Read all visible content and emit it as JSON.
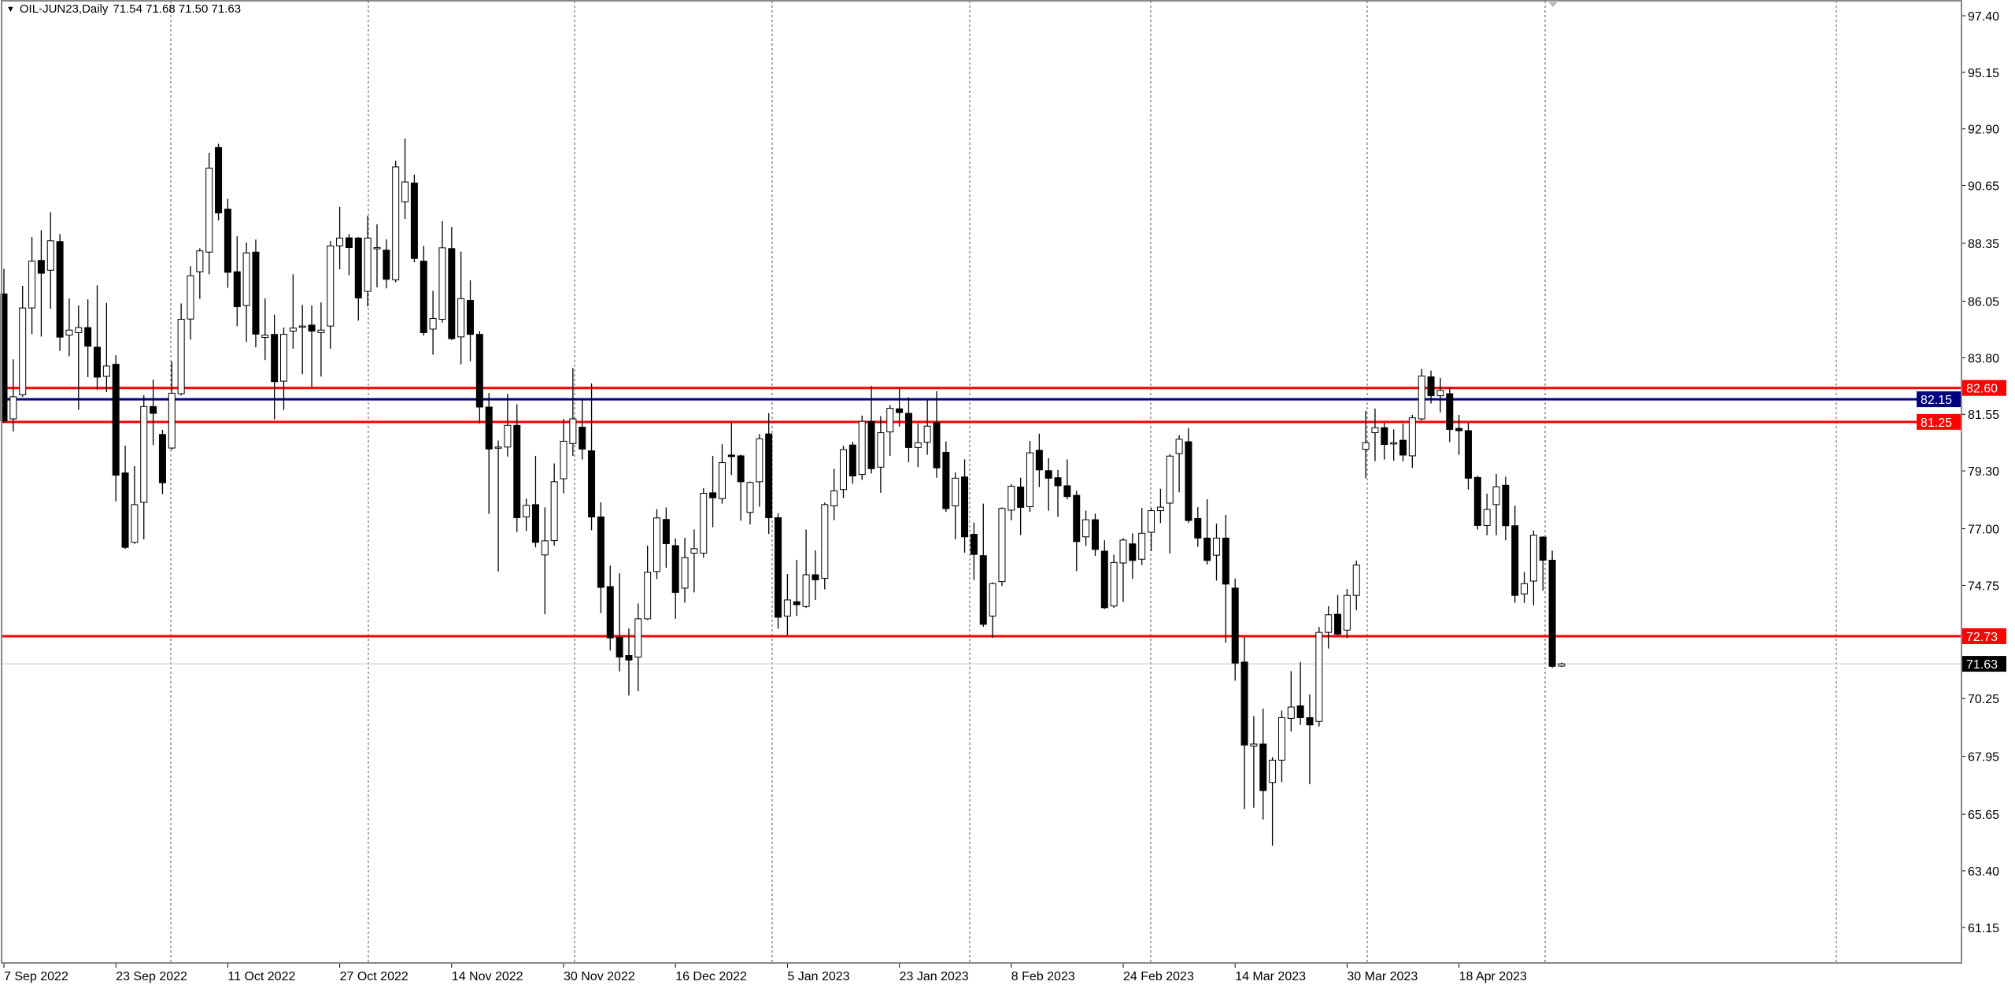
{
  "header": {
    "symbol_timeframe": "OIL-JUN23,Daily",
    "ohlc": "71.54 71.68 71.50 71.63",
    "menu_icon": "triangle-down-icon"
  },
  "chart_data": {
    "type": "candlestick",
    "title": "OIL-JUN23,Daily",
    "xlabel": "",
    "ylabel": "",
    "ylim": [
      59.5,
      97.9
    ],
    "grid": "vertical dashed",
    "colors": {
      "bull_body": "#ffffff",
      "bear_body": "#000000",
      "wick": "#000000",
      "background": "#ffffff"
    },
    "y_ticks": [
      "97.40",
      "95.15",
      "92.90",
      "90.65",
      "88.35",
      "86.05",
      "83.80",
      "81.55",
      "79.30",
      "77.00",
      "74.75",
      "70.25",
      "67.95",
      "65.65",
      "63.40",
      "61.15"
    ],
    "x_labels": [
      {
        "bar": 0,
        "label": "7 Sep 2022"
      },
      {
        "bar": 12,
        "label": "23 Sep 2022"
      },
      {
        "bar": 24,
        "label": "11 Oct 2022"
      },
      {
        "bar": 36,
        "label": "27 Oct 2022"
      },
      {
        "bar": 48,
        "label": "14 Nov 2022"
      },
      {
        "bar": 60,
        "label": "30 Nov 2022"
      },
      {
        "bar": 72,
        "label": "16 Dec 2022"
      },
      {
        "bar": 84,
        "label": "5 Jan 2023"
      },
      {
        "bar": 96,
        "label": "23 Jan 2023"
      },
      {
        "bar": 108,
        "label": "8 Feb 2023"
      },
      {
        "bar": 120,
        "label": "24 Feb 2023"
      },
      {
        "bar": 132,
        "label": "14 Mar 2023"
      },
      {
        "bar": 144,
        "label": "30 Mar 2023"
      },
      {
        "bar": 156,
        "label": "18 Apr 2023"
      }
    ],
    "levels": [
      {
        "price": "82.60",
        "color": "#ff0000",
        "text_color": "#ffffff"
      },
      {
        "price": "81.25",
        "color": "#ff0000",
        "text_color": "#ffffff"
      },
      {
        "price": "82.15",
        "color": "#000080",
        "text_color": "#ffffff"
      },
      {
        "price": "72.73",
        "color": "#ff0000",
        "text_color": "#ffffff"
      }
    ],
    "current_price": {
      "price": "71.63",
      "color": "#000000",
      "line_color": "#c8c8c8"
    },
    "candles_ohlc": [
      [
        86.34,
        87.34,
        81.23,
        81.29
      ],
      [
        81.37,
        83.74,
        80.87,
        82.25
      ],
      [
        82.33,
        86.66,
        82.25,
        85.78
      ],
      [
        85.78,
        88.6,
        84.74,
        87.64
      ],
      [
        87.67,
        88.87,
        84.64,
        87.16
      ],
      [
        87.28,
        89.59,
        85.75,
        88.45
      ],
      [
        88.42,
        88.72,
        84.07,
        84.62
      ],
      [
        84.7,
        86.16,
        83.86,
        84.9
      ],
      [
        84.8,
        85.88,
        81.73,
        85.0
      ],
      [
        85.0,
        86.12,
        83.03,
        84.26
      ],
      [
        84.22,
        86.68,
        82.52,
        83.03
      ],
      [
        83.06,
        85.98,
        82.43,
        83.47
      ],
      [
        83.54,
        83.9,
        78.09,
        79.13
      ],
      [
        79.22,
        80.3,
        76.2,
        76.26
      ],
      [
        76.46,
        79.49,
        76.4,
        77.96
      ],
      [
        78.05,
        82.31,
        76.58,
        81.86
      ],
      [
        81.86,
        82.93,
        80.33,
        81.59
      ],
      [
        80.75,
        80.93,
        78.38,
        78.83
      ],
      [
        80.21,
        83.65,
        80.15,
        82.39
      ],
      [
        82.37,
        85.96,
        82.3,
        85.33
      ],
      [
        85.34,
        87.44,
        84.52,
        87.06
      ],
      [
        87.22,
        88.15,
        86.14,
        88.05
      ],
      [
        88.0,
        91.95,
        87.12,
        91.34
      ],
      [
        92.16,
        92.31,
        89.26,
        89.56
      ],
      [
        89.71,
        90.12,
        86.58,
        87.2
      ],
      [
        87.22,
        88.63,
        85.06,
        85.83
      ],
      [
        85.88,
        88.38,
        84.43,
        87.97
      ],
      [
        88.0,
        88.5,
        84.22,
        84.74
      ],
      [
        84.61,
        86.16,
        83.71,
        84.7
      ],
      [
        84.73,
        85.51,
        81.35,
        82.85
      ],
      [
        82.87,
        85.0,
        81.73,
        84.73
      ],
      [
        84.86,
        87.12,
        84.16,
        84.98
      ],
      [
        85.06,
        85.9,
        83.15,
        85.06
      ],
      [
        85.1,
        85.88,
        82.63,
        84.86
      ],
      [
        84.8,
        86.0,
        83.05,
        84.9
      ],
      [
        85.06,
        88.44,
        84.16,
        88.25
      ],
      [
        88.25,
        89.8,
        87.32,
        88.56
      ],
      [
        88.57,
        88.72,
        87.08,
        88.18
      ],
      [
        88.56,
        88.6,
        85.28,
        86.18
      ],
      [
        86.44,
        89.44,
        85.84,
        88.56
      ],
      [
        88.18,
        89.11,
        86.6,
        88.18
      ],
      [
        88.08,
        88.51,
        86.56,
        86.92
      ],
      [
        86.9,
        91.63,
        86.8,
        91.39
      ],
      [
        90.0,
        92.52,
        89.32,
        90.79
      ],
      [
        90.75,
        91.08,
        87.6,
        87.75
      ],
      [
        87.64,
        88.25,
        84.68,
        84.8
      ],
      [
        84.94,
        86.46,
        83.92,
        85.36
      ],
      [
        85.33,
        89.23,
        85.2,
        88.17
      ],
      [
        88.14,
        89.0,
        84.5,
        84.56
      ],
      [
        84.63,
        88.02,
        83.54,
        86.15
      ],
      [
        86.08,
        86.88,
        83.66,
        84.73
      ],
      [
        84.73,
        84.86,
        81.19,
        81.84
      ],
      [
        81.84,
        82.4,
        77.59,
        80.17
      ],
      [
        80.25,
        80.51,
        75.3,
        80.25
      ],
      [
        80.25,
        82.37,
        79.87,
        81.11
      ],
      [
        81.11,
        81.95,
        76.87,
        77.44
      ],
      [
        77.47,
        78.2,
        76.91,
        77.93
      ],
      [
        77.96,
        79.9,
        76.26,
        76.46
      ],
      [
        75.96,
        77.85,
        73.6,
        76.52
      ],
      [
        76.53,
        79.6,
        76.33,
        78.87
      ],
      [
        78.99,
        81.37,
        78.41,
        80.48
      ],
      [
        80.39,
        83.39,
        79.9,
        81.37
      ],
      [
        81.04,
        82.15,
        79.75,
        80.17
      ],
      [
        80.1,
        82.78,
        76.94,
        77.47
      ],
      [
        77.47,
        78.05,
        73.65,
        74.67
      ],
      [
        74.7,
        75.53,
        72.16,
        72.66
      ],
      [
        72.69,
        75.23,
        71.33,
        71.9
      ],
      [
        71.96,
        73.03,
        70.37,
        71.78
      ],
      [
        71.9,
        74.03,
        70.54,
        73.42
      ],
      [
        73.42,
        76.33,
        73.38,
        75.27
      ],
      [
        75.3,
        77.78,
        75.0,
        77.43
      ],
      [
        77.37,
        77.85,
        75.45,
        76.41
      ],
      [
        76.33,
        76.61,
        73.42,
        74.47
      ],
      [
        74.64,
        76.64,
        74.06,
        75.85
      ],
      [
        76.03,
        76.97,
        74.47,
        76.21
      ],
      [
        76.03,
        78.61,
        75.85,
        78.41
      ],
      [
        78.43,
        79.9,
        77.06,
        78.23
      ],
      [
        78.2,
        80.36,
        78.0,
        79.63
      ],
      [
        79.93,
        81.24,
        79.14,
        79.87
      ],
      [
        79.9,
        79.95,
        77.32,
        78.87
      ],
      [
        77.65,
        78.88,
        77.17,
        78.84
      ],
      [
        78.87,
        80.77,
        77.88,
        80.58
      ],
      [
        80.77,
        81.6,
        76.79,
        77.44
      ],
      [
        77.44,
        77.62,
        73.03,
        73.48
      ],
      [
        73.53,
        75.2,
        72.77,
        74.17
      ],
      [
        74.1,
        75.76,
        73.53,
        73.98
      ],
      [
        73.91,
        76.97,
        73.85,
        75.17
      ],
      [
        75.17,
        76.14,
        74.17,
        74.97
      ],
      [
        75.03,
        78.04,
        74.59,
        77.96
      ],
      [
        77.91,
        79.39,
        77.34,
        78.51
      ],
      [
        78.56,
        80.3,
        78.22,
        80.15
      ],
      [
        80.33,
        80.46,
        78.79,
        79.1
      ],
      [
        79.16,
        81.5,
        78.94,
        81.27
      ],
      [
        81.27,
        82.68,
        79.2,
        79.39
      ],
      [
        79.45,
        81.48,
        78.43,
        80.82
      ],
      [
        80.85,
        81.92,
        79.9,
        81.79
      ],
      [
        81.77,
        82.61,
        81.06,
        81.62
      ],
      [
        81.59,
        82.23,
        79.65,
        80.23
      ],
      [
        80.23,
        81.19,
        79.45,
        80.42
      ],
      [
        80.44,
        82.13,
        79.94,
        81.08
      ],
      [
        81.22,
        82.47,
        79.03,
        79.42
      ],
      [
        80.04,
        80.47,
        77.67,
        77.8
      ],
      [
        77.91,
        79.24,
        76.58,
        79.01
      ],
      [
        79.06,
        79.76,
        76.05,
        76.68
      ],
      [
        76.78,
        77.25,
        74.96,
        75.98
      ],
      [
        75.93,
        78.0,
        73.1,
        73.2
      ],
      [
        73.53,
        74.87,
        72.66,
        74.82
      ],
      [
        74.9,
        77.85,
        74.72,
        77.81
      ],
      [
        77.74,
        78.77,
        77.34,
        78.69
      ],
      [
        78.66,
        79.03,
        76.75,
        77.85
      ],
      [
        77.88,
        80.49,
        77.67,
        80.02
      ],
      [
        80.12,
        80.78,
        78.66,
        79.34
      ],
      [
        79.31,
        79.81,
        77.72,
        79.01
      ],
      [
        79.03,
        79.34,
        77.48,
        78.71
      ],
      [
        78.71,
        79.76,
        78.17,
        78.28
      ],
      [
        78.33,
        78.51,
        75.32,
        76.49
      ],
      [
        76.68,
        77.72,
        76.31,
        77.36
      ],
      [
        77.36,
        77.6,
        75.92,
        76.18
      ],
      [
        76.11,
        76.54,
        73.81,
        73.86
      ],
      [
        73.93,
        75.97,
        73.85,
        75.66
      ],
      [
        75.64,
        76.63,
        74.09,
        76.55
      ],
      [
        76.4,
        76.82,
        75.01,
        75.74
      ],
      [
        75.79,
        77.83,
        75.56,
        76.82
      ],
      [
        76.86,
        77.83,
        76.11,
        77.72
      ],
      [
        77.72,
        78.59,
        77.23,
        77.86
      ],
      [
        78.02,
        79.97,
        76.02,
        79.89
      ],
      [
        79.99,
        80.72,
        78.45,
        80.56
      ],
      [
        80.46,
        81.01,
        77.23,
        77.33
      ],
      [
        77.41,
        77.86,
        76.28,
        76.63
      ],
      [
        76.63,
        78.17,
        75.58,
        75.74
      ],
      [
        75.95,
        77.2,
        74.94,
        76.63
      ],
      [
        76.63,
        77.55,
        72.47,
        74.8
      ],
      [
        74.64,
        75.02,
        70.96,
        71.66
      ],
      [
        71.7,
        72.71,
        65.85,
        68.4
      ],
      [
        68.36,
        69.55,
        65.91,
        68.44
      ],
      [
        68.44,
        69.85,
        65.44,
        66.59
      ],
      [
        66.91,
        67.92,
        64.4,
        67.8
      ],
      [
        67.8,
        69.77,
        66.93,
        69.49
      ],
      [
        69.46,
        71.34,
        68.94,
        69.91
      ],
      [
        69.96,
        71.69,
        69.2,
        69.49
      ],
      [
        69.49,
        70.41,
        66.84,
        69.2
      ],
      [
        69.34,
        73.09,
        69.14,
        72.88
      ],
      [
        72.88,
        73.92,
        72.24,
        73.58
      ],
      [
        73.6,
        74.37,
        72.75,
        72.81
      ],
      [
        72.97,
        74.6,
        72.65,
        74.35
      ],
      [
        74.35,
        75.73,
        73.77,
        75.56
      ],
      [
        80.16,
        81.69,
        79.01,
        80.42
      ],
      [
        80.82,
        81.78,
        79.69,
        81.02
      ],
      [
        81.02,
        81.21,
        79.75,
        80.35
      ],
      [
        80.42,
        80.95,
        79.71,
        80.42
      ],
      [
        80.52,
        81.18,
        79.68,
        79.93
      ],
      [
        79.9,
        81.53,
        79.42,
        81.41
      ],
      [
        81.37,
        83.36,
        81.31,
        83.07
      ],
      [
        83.04,
        83.29,
        81.98,
        82.29
      ],
      [
        82.29,
        83.0,
        81.63,
        82.5
      ],
      [
        82.37,
        82.61,
        80.45,
        80.95
      ],
      [
        80.99,
        81.53,
        79.94,
        80.9
      ],
      [
        80.9,
        81.22,
        78.56,
        79.01
      ],
      [
        79.04,
        79.1,
        76.97,
        77.13
      ],
      [
        77.13,
        78.4,
        76.74,
        77.77
      ],
      [
        77.96,
        79.18,
        76.74,
        78.67
      ],
      [
        78.73,
        79.07,
        76.54,
        77.12
      ],
      [
        77.12,
        77.92,
        74.06,
        74.35
      ],
      [
        74.41,
        75.28,
        74.05,
        74.82
      ],
      [
        74.92,
        76.93,
        73.96,
        76.74
      ],
      [
        76.67,
        76.7,
        74.54,
        75.75
      ],
      [
        75.75,
        76.13,
        71.47,
        71.53
      ],
      [
        71.54,
        71.68,
        71.5,
        71.63
      ]
    ]
  }
}
